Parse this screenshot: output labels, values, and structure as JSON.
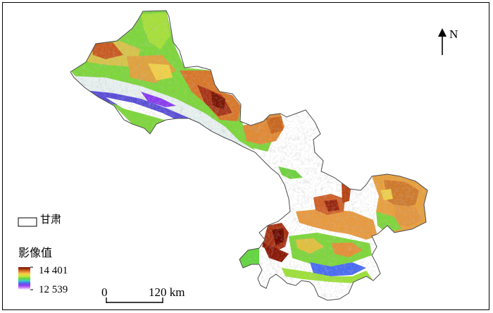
{
  "map": {
    "north_label": "N",
    "legend": {
      "boundary_label": "甘肃",
      "ramp_title": "影像值",
      "max_value_label": "14 401",
      "min_value_label": "12 539",
      "ramp_colors": [
        "#6e0b00",
        "#b84312",
        "#e88a35",
        "#f2d34a",
        "#c8e63a",
        "#63d640",
        "#3fd0c0",
        "#4a6cf2",
        "#8a3cf0",
        "#c87cf8",
        "#ffffff"
      ]
    },
    "scale_bar": {
      "zero_label": "0",
      "end_label": "120 km"
    },
    "colors": {
      "boundary": "#4d4d4d",
      "background": "#ffffff"
    }
  }
}
